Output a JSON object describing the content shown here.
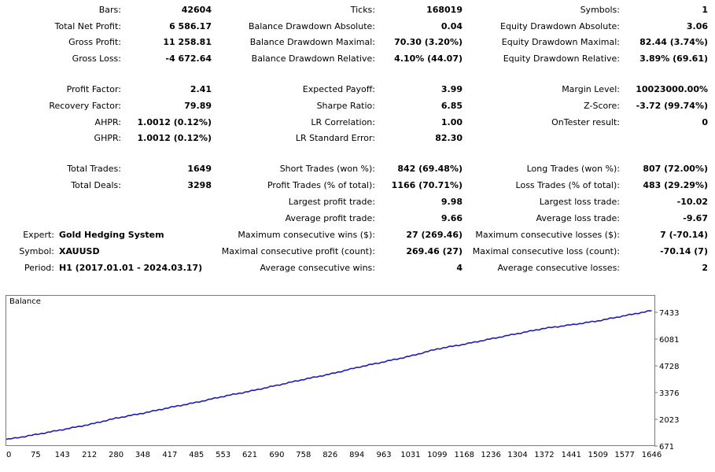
{
  "stats": {
    "col1": [
      {
        "label": "Bars:",
        "value": "42604"
      },
      {
        "label": "Total Net Profit:",
        "value": "6 586.17"
      },
      {
        "label": "Gross Profit:",
        "value": "11 258.81"
      },
      {
        "label": "Gross Loss:",
        "value": "-4 672.64"
      },
      {
        "label": "Profit Factor:",
        "value": "2.41"
      },
      {
        "label": "Recovery Factor:",
        "value": "79.89"
      },
      {
        "label": "AHPR:",
        "value": "1.0012 (0.12%)"
      },
      {
        "label": "GHPR:",
        "value": "1.0012 (0.12%)"
      },
      {
        "label": "Total Trades:",
        "value": "1649"
      },
      {
        "label": "Total Deals:",
        "value": "3298"
      }
    ],
    "col2": [
      {
        "label": "Ticks:",
        "value": "168019"
      },
      {
        "label": "Balance Drawdown Absolute:",
        "value": "0.04"
      },
      {
        "label": "Balance Drawdown Maximal:",
        "value": "70.30 (3.20%)"
      },
      {
        "label": "Balance Drawdown Relative:",
        "value": "4.10% (44.07)"
      },
      {
        "label": "Expected Payoff:",
        "value": "3.99"
      },
      {
        "label": "Sharpe Ratio:",
        "value": "6.85"
      },
      {
        "label": "LR Correlation:",
        "value": "1.00"
      },
      {
        "label": "LR Standard Error:",
        "value": "82.30"
      },
      {
        "label": "Short Trades (won %):",
        "value": "842 (69.48%)"
      },
      {
        "label": "Profit Trades (% of total):",
        "value": "1166 (70.71%)"
      },
      {
        "label": "Largest profit trade:",
        "value": "9.98"
      },
      {
        "label": "Average profit trade:",
        "value": "9.66"
      },
      {
        "label": "Maximum consecutive wins ($):",
        "value": "27 (269.46)"
      },
      {
        "label": "Maximal consecutive profit (count):",
        "value": "269.46 (27)"
      },
      {
        "label": "Average consecutive wins:",
        "value": "4"
      }
    ],
    "col3": [
      {
        "label": "Symbols:",
        "value": "1"
      },
      {
        "label": "Equity Drawdown Absolute:",
        "value": "3.06"
      },
      {
        "label": "Equity Drawdown Maximal:",
        "value": "82.44 (3.74%)"
      },
      {
        "label": "Equity Drawdown Relative:",
        "value": "3.89% (69.61)"
      },
      {
        "label": "Margin Level:",
        "value": "10023000.00%"
      },
      {
        "label": "Z-Score:",
        "value": "-3.72 (99.74%)"
      },
      {
        "label": "OnTester result:",
        "value": "0"
      },
      {
        "label": "Long Trades (won %):",
        "value": "807 (72.00%)"
      },
      {
        "label": "Loss Trades (% of total):",
        "value": "483 (29.29%)"
      },
      {
        "label": "Largest loss trade:",
        "value": "-10.02"
      },
      {
        "label": "Average loss trade:",
        "value": "-9.67"
      },
      {
        "label": "Maximum consecutive losses ($):",
        "value": "7 (-70.14)"
      },
      {
        "label": "Maximal consecutive loss (count):",
        "value": "-70.14 (7)"
      },
      {
        "label": "Average consecutive losses:",
        "value": "2"
      }
    ],
    "info": [
      {
        "label": "Expert:",
        "value": "Gold Hedging System"
      },
      {
        "label": "Symbol:",
        "value": "XAUUSD"
      },
      {
        "label": "Period:",
        "value": "H1 (2017.01.01 - 2024.03.17)"
      }
    ]
  },
  "chart_data": {
    "type": "line",
    "title": "Balance",
    "xlabel": "",
    "ylabel": "",
    "x_ticks": [
      "0",
      "75",
      "143",
      "212",
      "280",
      "348",
      "417",
      "485",
      "553",
      "621",
      "690",
      "758",
      "826",
      "894",
      "963",
      "1031",
      "1099",
      "1168",
      "1236",
      "1304",
      "1372",
      "1441",
      "1509",
      "1577",
      "1646"
    ],
    "y_ticks": [
      "7433",
      "6081",
      "4728",
      "3376",
      "2023",
      "671"
    ],
    "xlim": [
      0,
      1649
    ],
    "ylim": [
      671,
      7433
    ],
    "series": [
      {
        "color": "#1c1cb4",
        "x": [
          0,
          75,
          143,
          212,
          280,
          348,
          417,
          485,
          553,
          621,
          690,
          758,
          826,
          894,
          963,
          1031,
          1099,
          1168,
          1236,
          1304,
          1372,
          1441,
          1509,
          1577,
          1646
        ],
        "values": [
          1000,
          1250,
          1500,
          1760,
          2080,
          2330,
          2620,
          2880,
          3180,
          3440,
          3740,
          4040,
          4310,
          4640,
          4930,
          5220,
          5580,
          5820,
          6090,
          6360,
          6620,
          6800,
          7000,
          7260,
          7520
        ]
      }
    ]
  }
}
